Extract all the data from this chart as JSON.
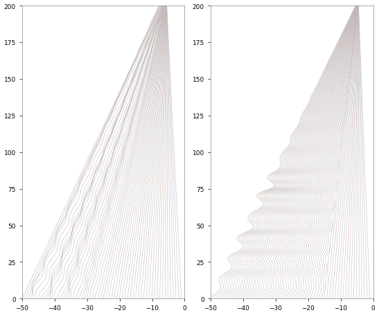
{
  "xlim": [
    -50,
    0
  ],
  "ylim": [
    0,
    200
  ],
  "yticks": [
    0,
    25,
    50,
    75,
    100,
    125,
    150,
    175,
    200
  ],
  "xticks": [
    -50,
    -40,
    -30,
    -20,
    -10,
    0
  ],
  "n_traj": 60,
  "t_max": 200,
  "n_t": 800,
  "figsize": [
    5.47,
    4.56
  ],
  "dpi": 100,
  "colors": [
    "#c8b4a0",
    "#d4b0b0",
    "#b0c8b8",
    "#b8b8cc",
    "#ccb4c0",
    "#c0b8a8",
    "#d8b8b4",
    "#b4c4bc",
    "#b8bcd0",
    "#c8b8c4"
  ],
  "linewidth": 0.45,
  "alpha": 0.9
}
